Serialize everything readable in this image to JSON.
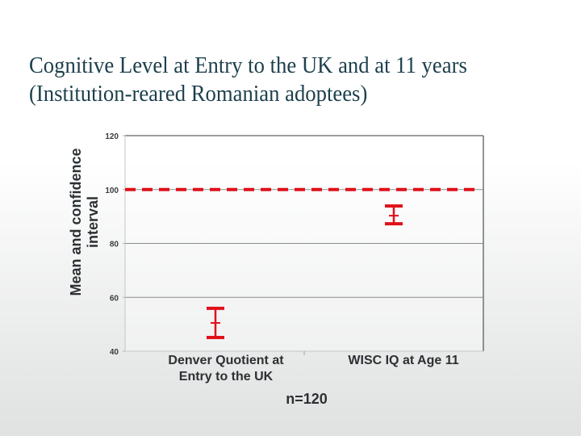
{
  "title": {
    "line1": "Cognitive Level at Entry to the UK and at 11 years",
    "line2": "(Institution-reared Romanian adoptees)"
  },
  "axis": {
    "ylabel": "Mean and confidence interval",
    "ylabel_line1": "Mean and confidence",
    "ylabel_line2": "interval",
    "yticks": [
      "120",
      "100",
      "80",
      "60",
      "40"
    ]
  },
  "categories": [
    "Denver Quotient at Entry to the UK",
    "WISC IQ at Age 11"
  ],
  "category_labels": {
    "c1_line1": "Denver Quotient at",
    "c1_line2": "Entry to the UK",
    "c2_line1": "WISC IQ at Age 11"
  },
  "footnote": "n=120",
  "colors": {
    "accent": "#e0101a",
    "title": "#1c3f4c",
    "grid": "#8a8d8f"
  },
  "chart_data": {
    "type": "errorbar",
    "title": "Cognitive Level at Entry to the UK and at 11 years (Institution-reared Romanian adoptees)",
    "xlabel": "",
    "ylabel": "Mean and confidence interval",
    "categories": [
      "Denver Quotient at Entry to the UK",
      "WISC IQ at Age 11"
    ],
    "series": [
      {
        "name": "Mean",
        "values": [
          50.5,
          90.3
        ]
      },
      {
        "name": "CI lower",
        "values": [
          45.1,
          87.3
        ]
      },
      {
        "name": "CI upper",
        "values": [
          55.9,
          93.9
        ]
      }
    ],
    "reference_line": {
      "y": 100,
      "style": "dashed",
      "color": "#e0101a"
    },
    "ylim": [
      40,
      120
    ],
    "yticks": [
      40,
      60,
      80,
      100,
      120
    ],
    "grid": true,
    "legend": "none",
    "annotations": [
      "n=120"
    ]
  }
}
